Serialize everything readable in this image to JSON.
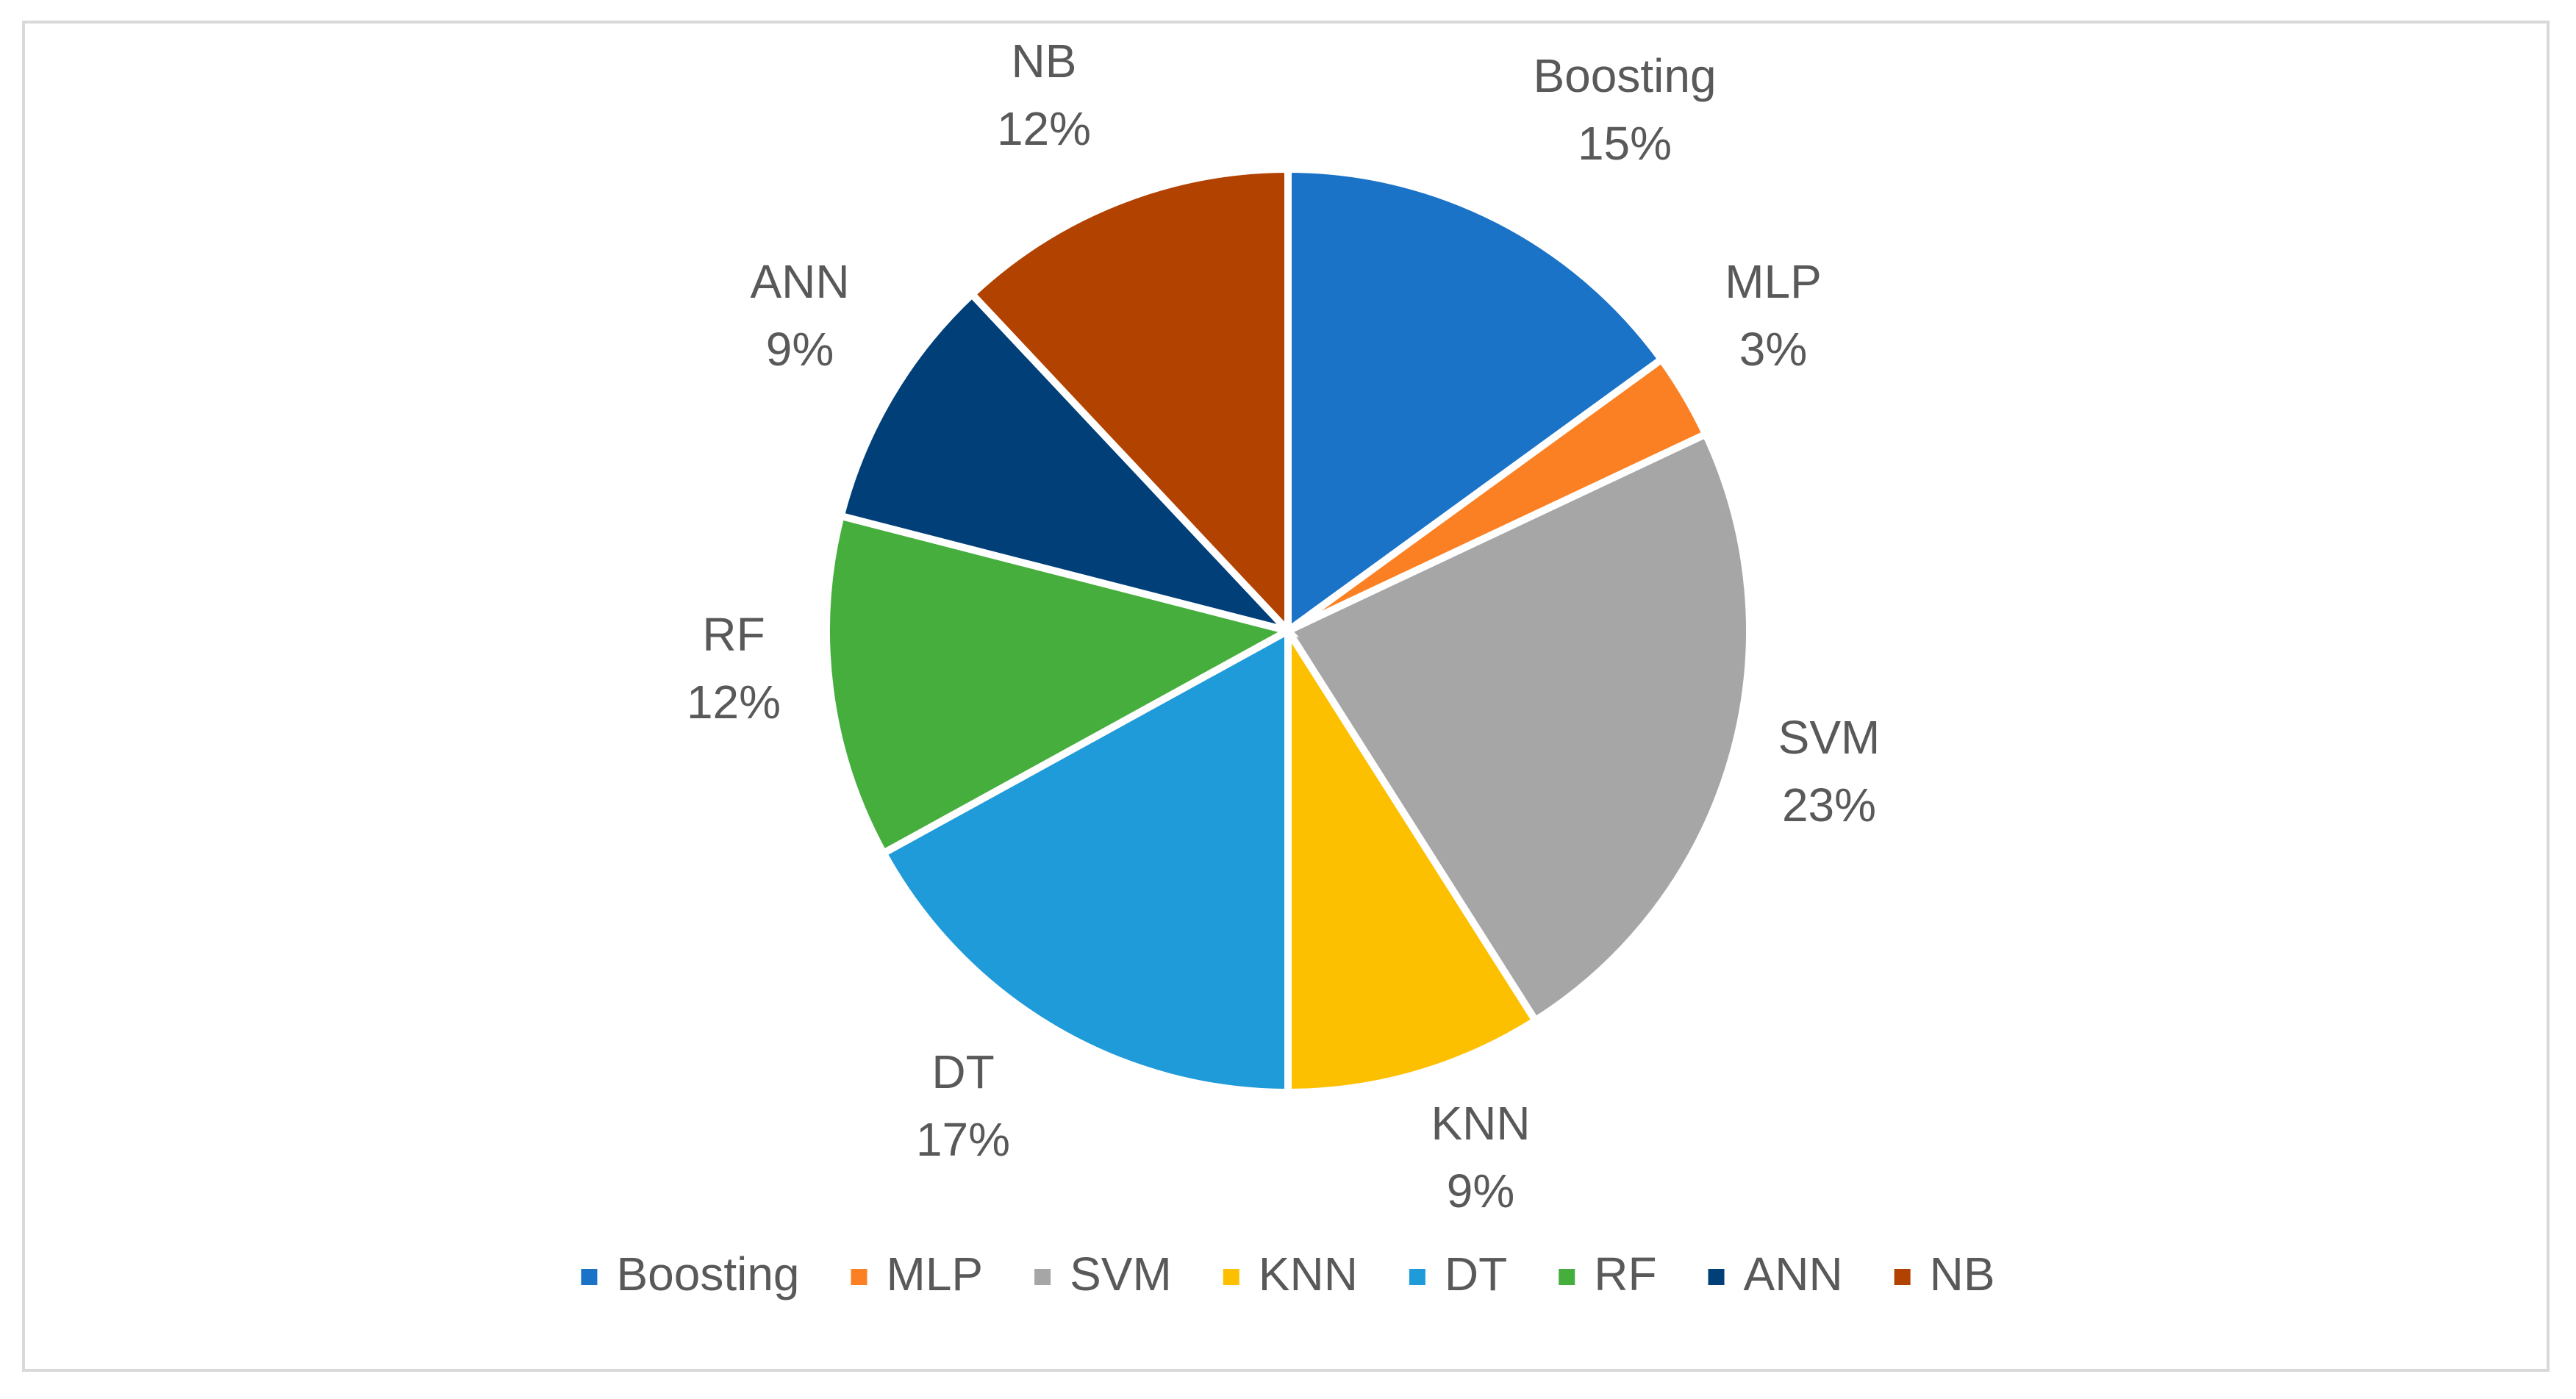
{
  "chart_data": {
    "type": "pie",
    "title": "",
    "start_angle_deg": 0,
    "direction": "clockwise",
    "slices": [
      {
        "name": "Boosting",
        "value": 15,
        "label": "15%",
        "color": "#1b73c7"
      },
      {
        "name": "MLP",
        "value": 3,
        "label": "3%",
        "color": "#fb8023"
      },
      {
        "name": "SVM",
        "value": 23,
        "label": "23%",
        "color": "#a6a6a6"
      },
      {
        "name": "KNN",
        "value": 9,
        "label": "9%",
        "color": "#fdc000"
      },
      {
        "name": "DT",
        "value": 17,
        "label": "17%",
        "color": "#1f9bd9"
      },
      {
        "name": "RF",
        "value": 12,
        "label": "12%",
        "color": "#45ae3d"
      },
      {
        "name": "ANN",
        "value": 9,
        "label": "9%",
        "color": "#003f78"
      },
      {
        "name": "NB",
        "value": 12,
        "label": "12%",
        "color": "#b24200"
      }
    ],
    "legend": {
      "position": "bottom",
      "entries": [
        "Boosting",
        "MLP",
        "SVM",
        "KNN",
        "DT",
        "RF",
        "ANN",
        "NB"
      ]
    }
  }
}
